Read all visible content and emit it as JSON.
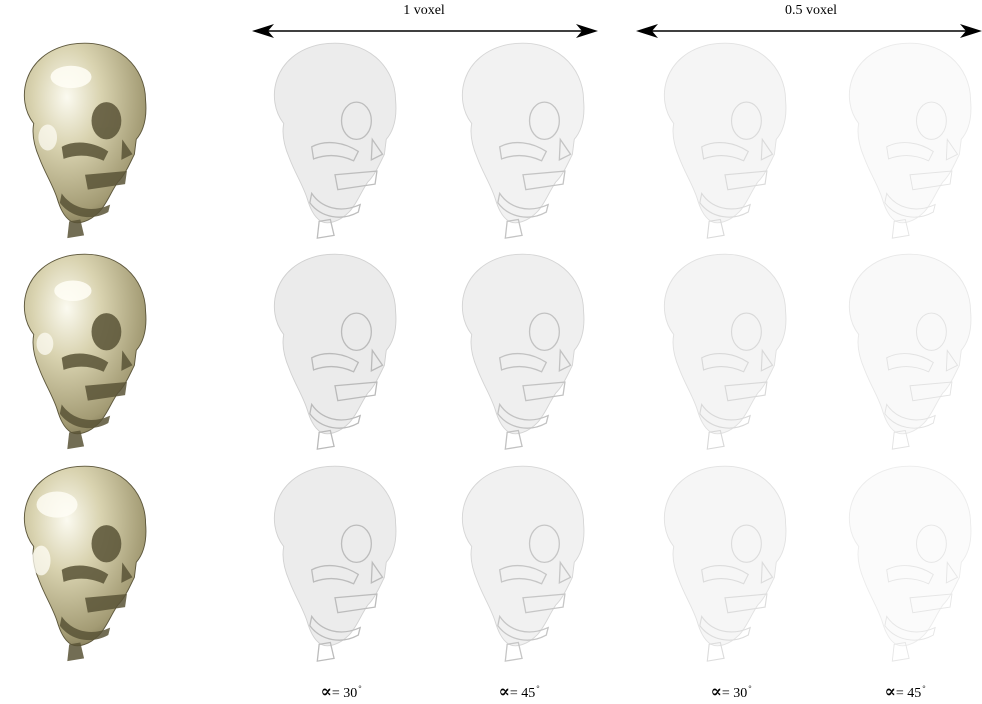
{
  "header": {
    "group1_label": "1 voxel",
    "group2_label": "0.5 voxel"
  },
  "columns": [
    {
      "alpha_symbol": "∝",
      "equals": "= 30",
      "degree": "°"
    },
    {
      "alpha_symbol": "∝",
      "equals": "= 45",
      "degree": "°"
    },
    {
      "alpha_symbol": "∝",
      "equals": "= 30",
      "degree": "°"
    },
    {
      "alpha_symbol": "∝",
      "equals": "= 45",
      "degree": "°"
    }
  ],
  "colors": {
    "skull_fill": "#cfc9a4",
    "skull_shadow": "#7d7656",
    "skull_highlight": "#fbfaf0",
    "diff_strong": "#c8c8c8",
    "diff_medium": "#dedede",
    "diff_weak": "#ececec"
  }
}
